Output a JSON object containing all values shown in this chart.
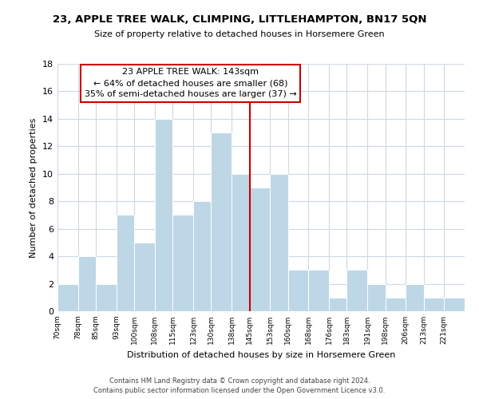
{
  "title": "23, APPLE TREE WALK, CLIMPING, LITTLEHAMPTON, BN17 5QN",
  "subtitle": "Size of property relative to detached houses in Horsemere Green",
  "xlabel": "Distribution of detached houses by size in Horsemere Green",
  "ylabel": "Number of detached properties",
  "bin_labels": [
    "70sqm",
    "78sqm",
    "85sqm",
    "93sqm",
    "100sqm",
    "108sqm",
    "115sqm",
    "123sqm",
    "130sqm",
    "138sqm",
    "145sqm",
    "153sqm",
    "160sqm",
    "168sqm",
    "176sqm",
    "183sqm",
    "191sqm",
    "198sqm",
    "206sqm",
    "213sqm",
    "221sqm"
  ],
  "bin_edges": [
    70,
    78,
    85,
    93,
    100,
    108,
    115,
    123,
    130,
    138,
    145,
    153,
    160,
    168,
    176,
    183,
    191,
    198,
    206,
    213,
    221
  ],
  "counts": [
    2,
    4,
    2,
    7,
    5,
    14,
    7,
    8,
    13,
    10,
    9,
    10,
    3,
    3,
    1,
    3,
    2,
    1,
    2,
    1,
    1
  ],
  "bar_color": "#bdd7e7",
  "bar_edge_color": "#ffffff",
  "ref_line_x": 145,
  "ref_line_color": "#cc0000",
  "annotation_title": "23 APPLE TREE WALK: 143sqm",
  "annotation_line1": "← 64% of detached houses are smaller (68)",
  "annotation_line2": "35% of semi-detached houses are larger (37) →",
  "annotation_box_color": "#ffffff",
  "annotation_box_edge": "#cc0000",
  "ylim": [
    0,
    18
  ],
  "yticks": [
    0,
    2,
    4,
    6,
    8,
    10,
    12,
    14,
    16,
    18
  ],
  "footer1": "Contains HM Land Registry data © Crown copyright and database right 2024.",
  "footer2": "Contains public sector information licensed under the Open Government Licence v3.0.",
  "bg_color": "#ffffff",
  "grid_color": "#cdd8e3"
}
